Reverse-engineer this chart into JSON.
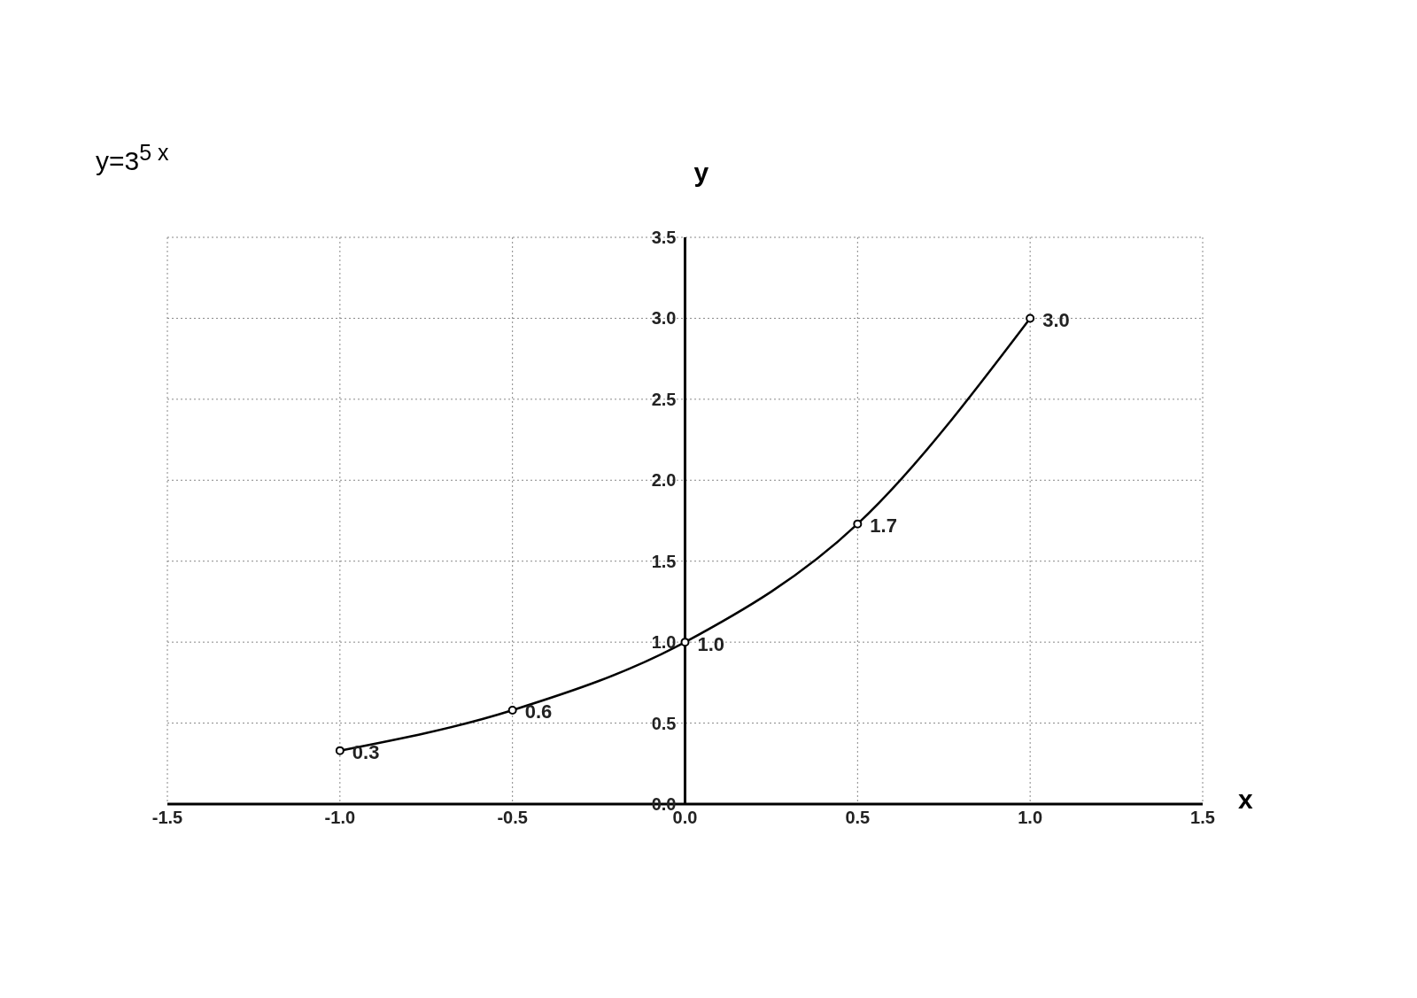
{
  "chart_data": {
    "type": "line",
    "title": "y=3$^{5  x}$",
    "xlabel": "x",
    "ylabel": "y",
    "x": [
      -1,
      -0.5,
      0,
      0.5,
      1
    ],
    "series": [
      {
        "color": "#000000",
        "values": [
          0.33,
          0.58,
          1,
          1.73,
          3
        ],
        "value_labels": [
          "0.3",
          "0.6",
          "1.0",
          "1.7",
          "3.0"
        ]
      }
    ],
    "xlim": [
      -1.5,
      1.5
    ],
    "xticks": [
      {
        "value": -1.5,
        "label": "-1.5"
      },
      {
        "value": -1,
        "label": "-1.0"
      },
      {
        "value": -0.5,
        "label": "-0.5"
      },
      {
        "value": 0,
        "label": "0.0"
      },
      {
        "value": 0.5,
        "label": "0.5"
      },
      {
        "value": 1,
        "label": "1.0"
      },
      {
        "value": 1.5,
        "label": "1.5"
      }
    ],
    "ylim": [
      0,
      3.5
    ],
    "yticks": [
      {
        "value": 0,
        "label": "0.0"
      },
      {
        "value": 0.5,
        "label": "0.5"
      },
      {
        "value": 1,
        "label": "1.0"
      },
      {
        "value": 1.5,
        "label": "1.5"
      },
      {
        "value": 2,
        "label": "2.0"
      },
      {
        "value": 2.5,
        "label": "2.5"
      },
      {
        "value": 3,
        "label": "3.0"
      },
      {
        "value": 3.5,
        "label": "3.5"
      }
    ],
    "grid": true,
    "marker": "circle",
    "line_style": "solid"
  }
}
